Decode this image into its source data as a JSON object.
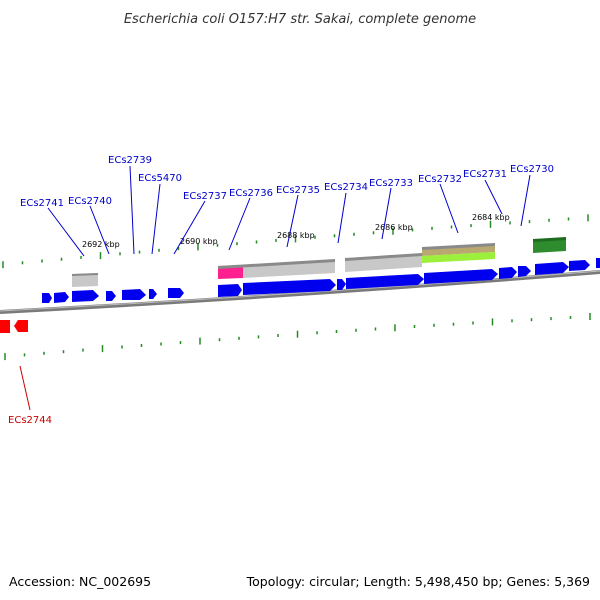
{
  "title": "Escherichia coli O157:H7 str. Sakai, complete genome",
  "accession": "Accession: NC_002695",
  "summary": "Topology: circular; Length: 5,498,450 bp; Genes: 5,369",
  "colors": {
    "forward_gene": "#0000ee",
    "reverse_gene": "#ff0000",
    "label_forward": "#0000cc",
    "label_reverse": "#cc0000",
    "tick": "#228b22",
    "backbone": "#808080",
    "feature_grey": "#c0c0c0",
    "feature_pink": "#ff1493",
    "feature_olive": "#b5a36b",
    "feature_lime": "#99ee33",
    "feature_green": "#2e8b2e"
  },
  "kbp_labels": [
    "2692 kbp",
    "2690 kbp",
    "2688 kbp",
    "2686 kbp",
    "2684 kbp"
  ],
  "gene_labels": [
    {
      "text": "ECs2741",
      "strand": "forward"
    },
    {
      "text": "ECs2740",
      "strand": "forward"
    },
    {
      "text": "ECs2739",
      "strand": "forward"
    },
    {
      "text": "ECs5470",
      "strand": "forward"
    },
    {
      "text": "ECs2737",
      "strand": "forward"
    },
    {
      "text": "ECs2736",
      "strand": "forward"
    },
    {
      "text": "ECs2735",
      "strand": "forward"
    },
    {
      "text": "ECs2734",
      "strand": "forward"
    },
    {
      "text": "ECs2733",
      "strand": "forward"
    },
    {
      "text": "ECs2732",
      "strand": "forward"
    },
    {
      "text": "ECs2731",
      "strand": "forward"
    },
    {
      "text": "ECs2730",
      "strand": "forward"
    },
    {
      "text": "ECs2744",
      "strand": "reverse"
    }
  ]
}
